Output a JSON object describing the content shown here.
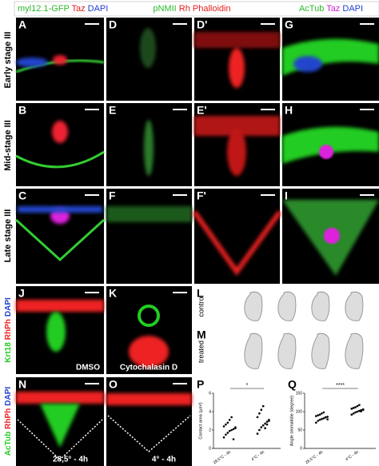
{
  "headers": [
    [
      "myl12.1-GFP",
      "Taz",
      "DAPI"
    ],
    [
      "pNMII",
      "Rh Phalloidin"
    ],
    [
      "AcTub",
      "Taz",
      "DAPI"
    ]
  ],
  "row_labels": [
    "Early stage III",
    "Mid-stage III",
    "Late stage III"
  ],
  "panel_letters": [
    "A",
    "D",
    "D'",
    "G",
    "B",
    "E",
    "E'",
    "H",
    "C",
    "F",
    "F'",
    "I",
    "J",
    "K",
    "L",
    "M",
    "N",
    "O",
    "P",
    "Q"
  ],
  "side_labels": {
    "J": [
      "Krt18",
      "RhPh",
      "DAPI"
    ],
    "N": [
      "AcTub",
      "RhPh",
      "DAPI"
    ]
  },
  "captions": {
    "J": "DMSO",
    "K": "Cytochalasin D",
    "N": "28,5° - 4h",
    "O": "4° - 4h"
  },
  "lm_labels": [
    "control",
    "treated"
  ],
  "plots": [
    {
      "ylabel": "Contact area (µm²)",
      "categories": [
        "28,5°C - 4h",
        "4°C - 4h"
      ],
      "significance": "*",
      "ylim": [
        0,
        6
      ],
      "yticks": [
        0,
        2,
        4,
        6
      ],
      "groups": [
        [
          1.2,
          1.5,
          1.7,
          1.9,
          2.0,
          2.1,
          2.2,
          2.4,
          2.6,
          2.8,
          3.1,
          3.4,
          1.0,
          2.3
        ],
        [
          1.6,
          2.0,
          2.3,
          2.5,
          2.7,
          2.9,
          3.1,
          3.4,
          3.8,
          4.2,
          4.6,
          2.2,
          2.6,
          3.0
        ]
      ]
    },
    {
      "ylabel": "Angle ommatidie (degree)",
      "categories": [
        "28,5°C - 4h",
        "4°C - 4h"
      ],
      "significance": "****",
      "ylim": [
        0,
        150
      ],
      "yticks": [
        0,
        50,
        100,
        150
      ],
      "groups": [
        [
          70,
          75,
          78,
          80,
          82,
          84,
          86,
          88,
          90,
          92,
          95,
          98,
          85,
          79
        ],
        [
          92,
          95,
          98,
          100,
          102,
          104,
          106,
          108,
          110,
          112,
          115,
          118,
          101,
          105
        ]
      ]
    }
  ]
}
